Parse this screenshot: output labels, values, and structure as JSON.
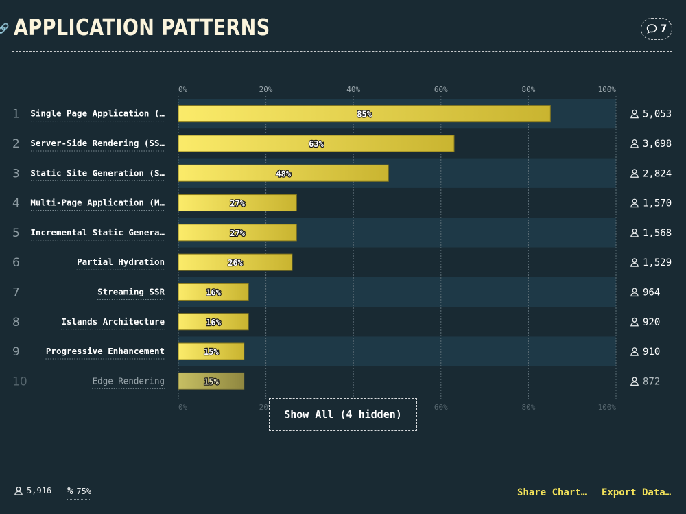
{
  "header": {
    "title": "Application Patterns",
    "comment_count": "7"
  },
  "show_all_label": "Show All (4 hidden)",
  "footer": {
    "respondents": "5,916",
    "percent": "75%",
    "share_label": "Share Chart…",
    "export_label": "Export Data…"
  },
  "colors": {
    "background": "#192a33",
    "bar_start": "#fbeb6a",
    "bar_end": "#c9b430",
    "row_band": "#1e3947",
    "accent": "#f3e25a"
  },
  "chart_data": {
    "type": "bar",
    "orientation": "horizontal",
    "xlim": [
      0,
      100
    ],
    "ticks": [
      "0%",
      "20%",
      "40%",
      "60%",
      "80%",
      "100%"
    ],
    "grid": true,
    "categories": [
      "Single Page Application (…",
      "Server-Side Rendering (SS…",
      "Static Site Generation (S…",
      "Multi-Page Application (M…",
      "Incremental Static Genera…",
      "Partial Hydration",
      "Streaming SSR",
      "Islands Architecture",
      "Progressive Enhancement",
      "Edge Rendering"
    ],
    "ranks": [
      "1",
      "2",
      "3",
      "4",
      "5",
      "6",
      "7",
      "8",
      "9",
      "10"
    ],
    "values": [
      85,
      63,
      48,
      27,
      27,
      26,
      16,
      16,
      15,
      15
    ],
    "value_labels": [
      "85%",
      "63%",
      "48%",
      "27%",
      "27%",
      "26%",
      "16%",
      "16%",
      "15%",
      "15%"
    ],
    "counts": [
      "5,053",
      "3,698",
      "2,824",
      "1,570",
      "1,568",
      "1,529",
      "964",
      "920",
      "910",
      "872"
    ]
  }
}
